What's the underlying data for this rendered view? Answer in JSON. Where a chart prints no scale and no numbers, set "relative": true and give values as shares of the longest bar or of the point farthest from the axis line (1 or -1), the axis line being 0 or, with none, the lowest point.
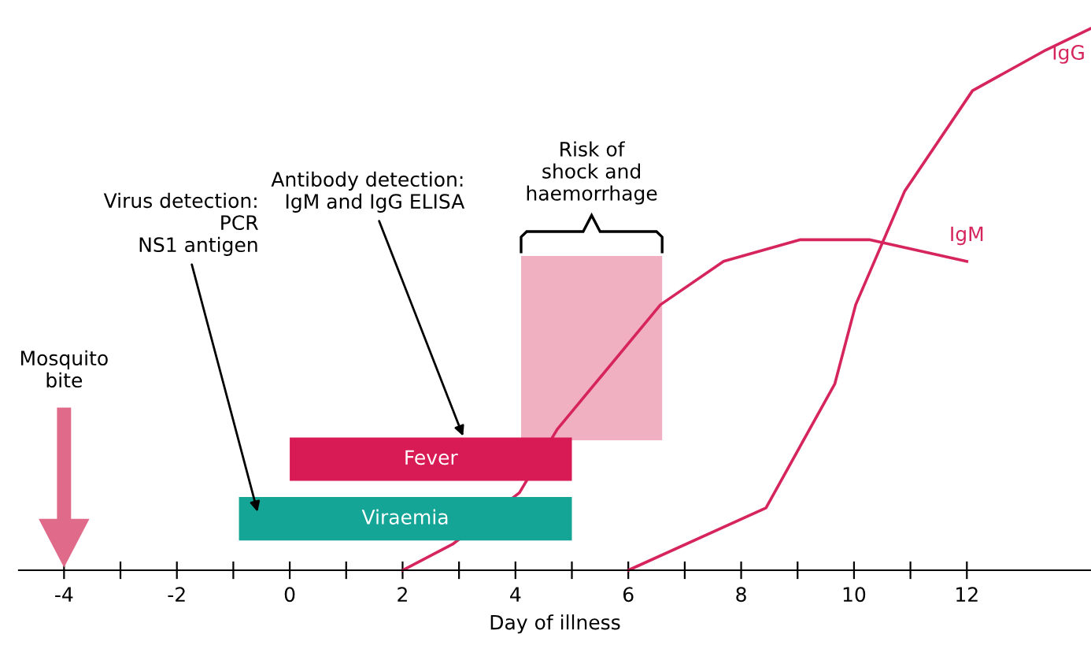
{
  "chart_data": [
    {
      "type": "line",
      "relative": true,
      "xlabel": "Day of illness",
      "xlim": [
        -4.8,
        14.2
      ],
      "xticks": [
        {
          "value": -4,
          "label": "-4"
        },
        {
          "value": -3,
          "label": null
        },
        {
          "value": -2,
          "label": "-2"
        },
        {
          "value": -1,
          "label": null
        },
        0,
        {
          "value": 1,
          "label": null
        },
        2,
        {
          "value": 3,
          "label": null
        },
        4,
        {
          "value": 5,
          "label": null
        },
        6,
        {
          "value": 7,
          "label": null
        },
        8,
        {
          "value": 9,
          "label": null
        },
        10,
        {
          "value": 11,
          "label": null
        },
        12
      ],
      "grid": false,
      "legend": false,
      "marker": "none",
      "line_style": "solid",
      "series": [
        {
          "name": "IgM",
          "color": "#d6245c",
          "x": [
            2,
            2.9,
            4.07,
            4.74,
            6.57,
            7.69,
            9.05,
            10.27,
            12
          ],
          "values": [
            0,
            0.049,
            0.143,
            0.26,
            0.49,
            0.57,
            0.61,
            0.61,
            0.57
          ]
        },
        {
          "name": "IgG",
          "color": "#d6245c",
          "x": [
            6,
            8.44,
            9.66,
            10.03,
            10.9,
            12.1,
            13.4,
            14.2
          ],
          "values": [
            0,
            0.115,
            0.344,
            0.49,
            0.7,
            0.885,
            0.96,
            1
          ]
        }
      ],
      "bands": [
        {
          "axis": "x",
          "from": 4.1,
          "to": 6.6,
          "label": "Risk of\nshock and\nhaemorrhage",
          "color": "#d81b50"
        },
        {
          "axis": "x",
          "from": 0,
          "to": 5,
          "label": "Fever",
          "color": "#d81b55"
        },
        {
          "axis": "x",
          "from": -0.9,
          "to": 5,
          "label": "Viraemia",
          "color": "#14a596"
        }
      ],
      "annotations": [
        "Mosquito\nbite",
        "Virus detection:\nPCR\nNS1 antigen",
        "Antibody detection:\nIgM and IgG ELISA"
      ]
    }
  ]
}
